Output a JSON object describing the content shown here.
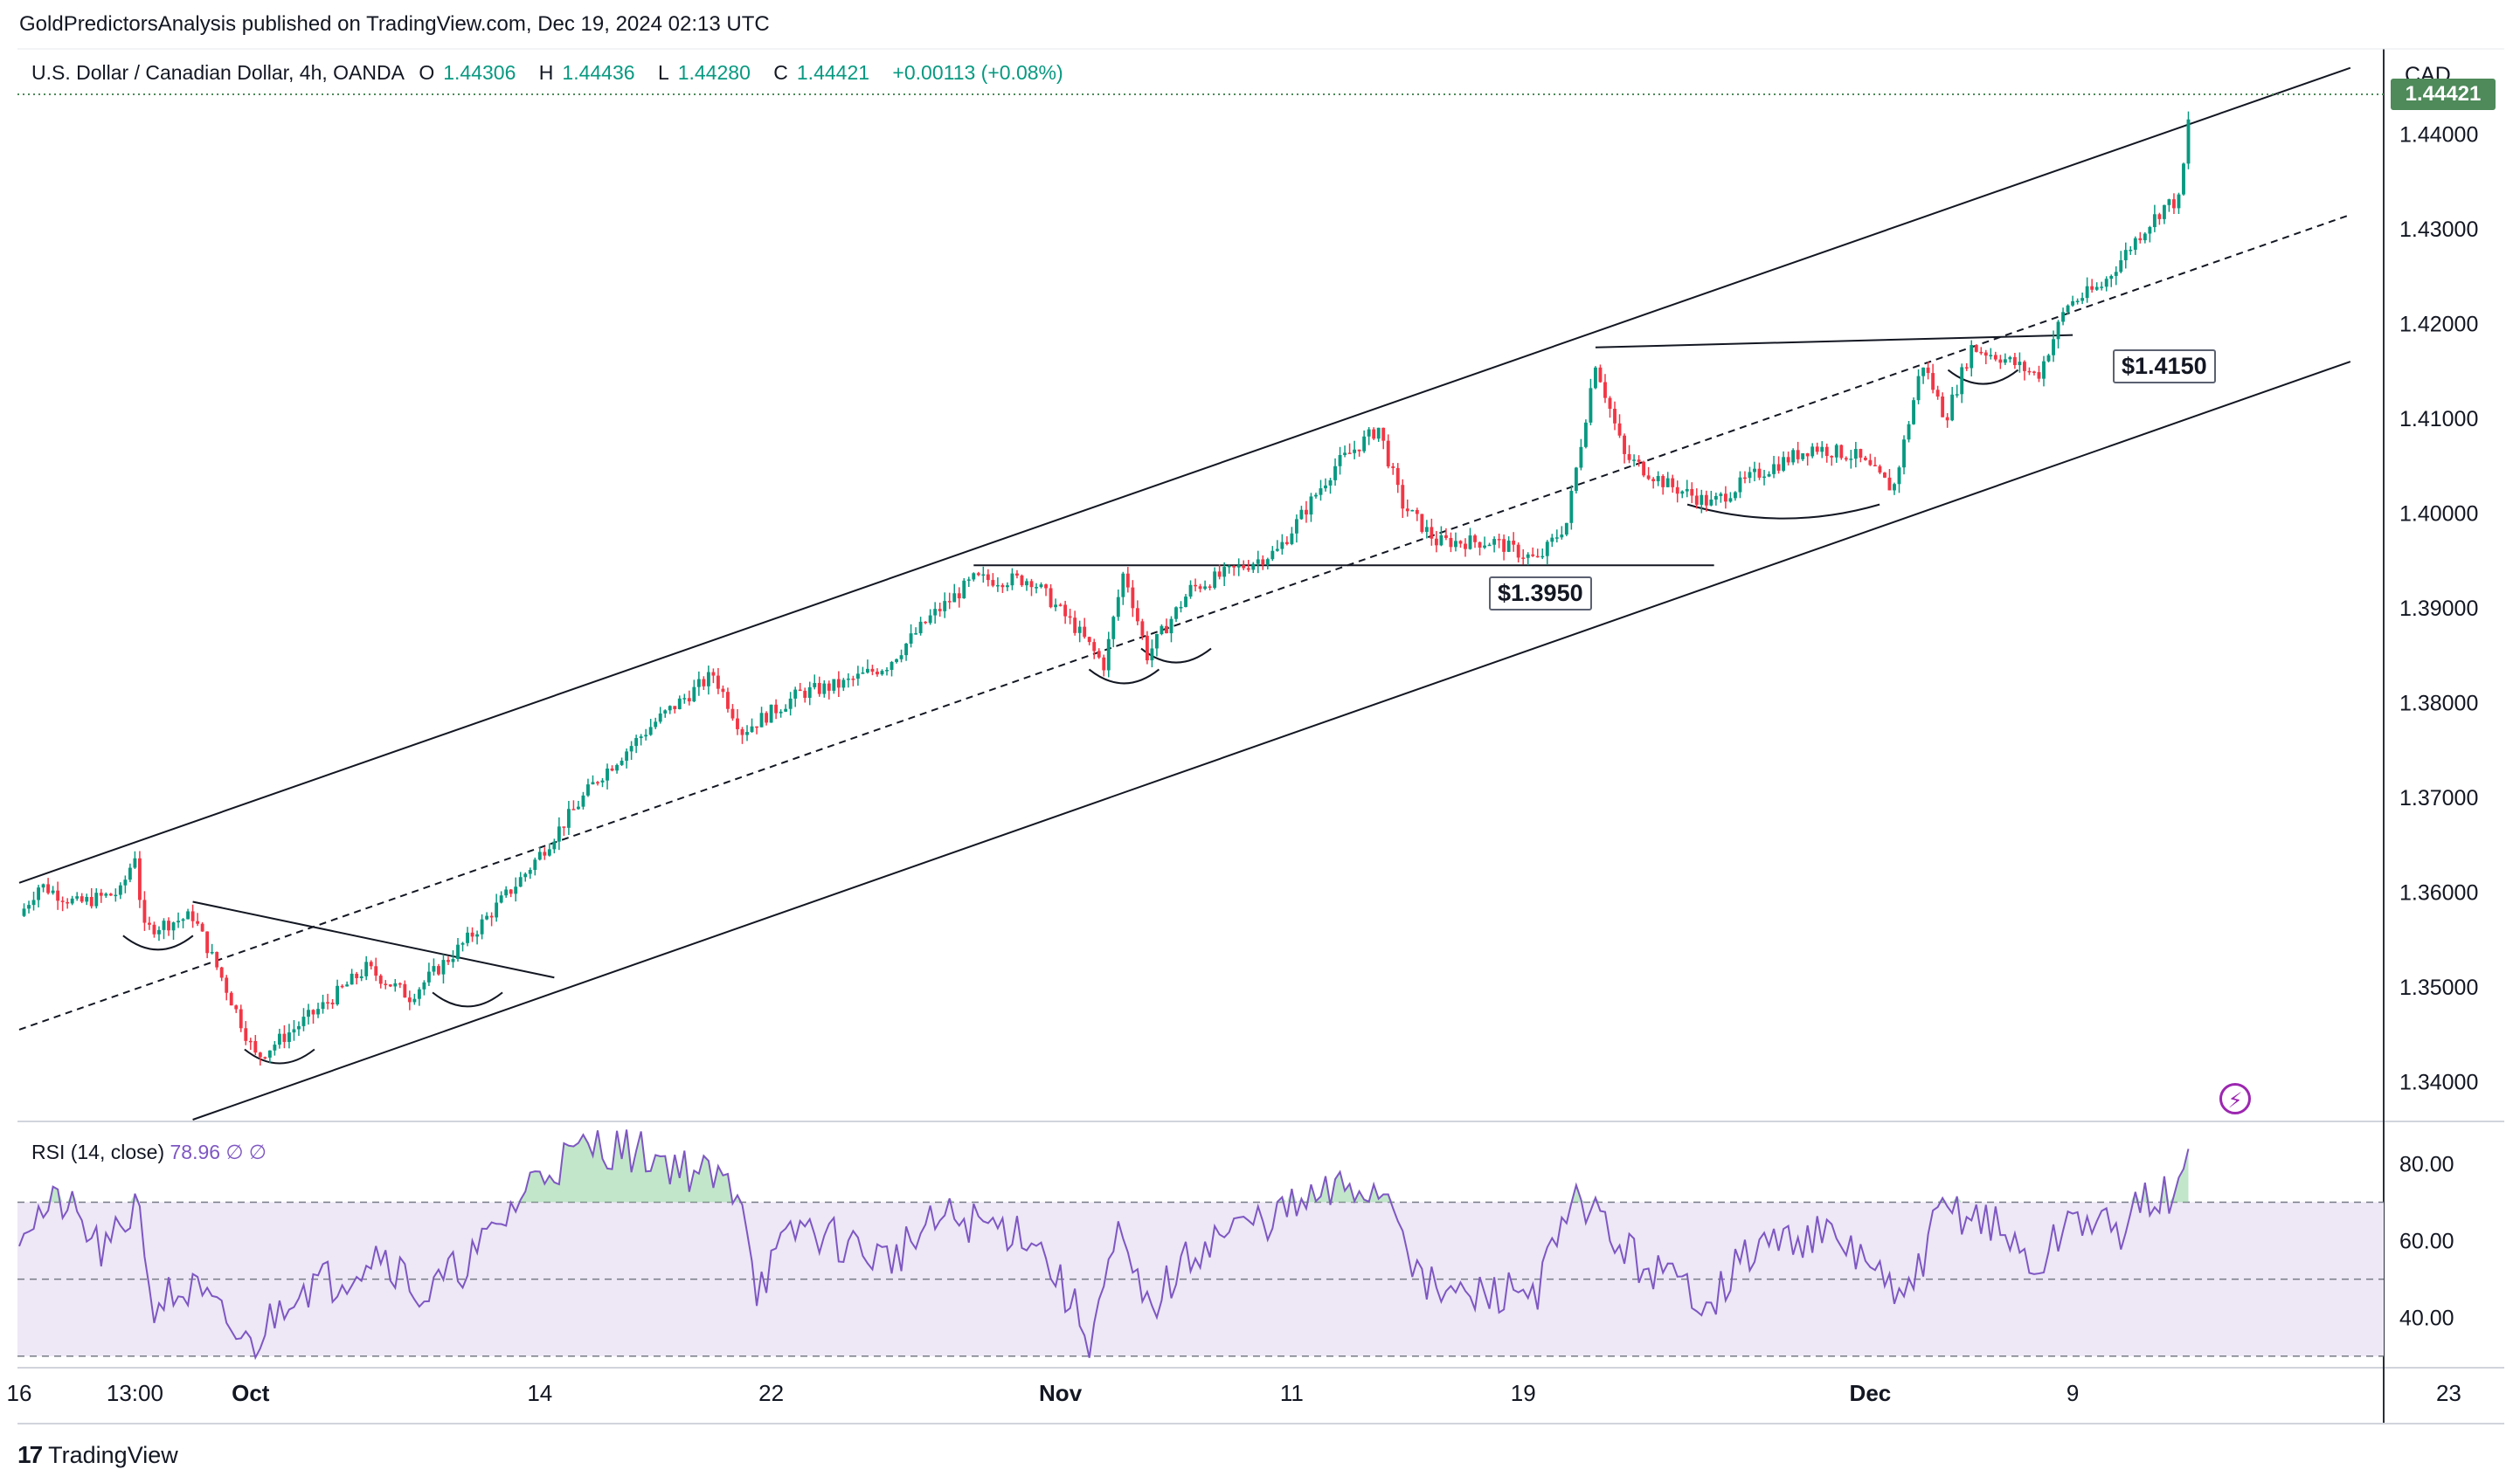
{
  "header": {
    "published": "GoldPredictorsAnalysis published on TradingView.com, Dec 19, 2024 02:13 UTC"
  },
  "symbol": {
    "name": "U.S. Dollar / Canadian Dollar, 4h, OANDA",
    "open_label": "O",
    "open": "1.44306",
    "high_label": "H",
    "high": "1.44436",
    "low_label": "L",
    "low": "1.44280",
    "close_label": "C",
    "close": "1.44421",
    "change": "+0.00113 (+0.08%)"
  },
  "price_axis": {
    "currency": "CAD",
    "last_price": "1.44421",
    "ticks": [
      "1.44000",
      "1.43000",
      "1.42000",
      "1.41000",
      "1.40000",
      "1.39000",
      "1.38000",
      "1.37000",
      "1.36000",
      "1.35000",
      "1.34000"
    ]
  },
  "annotations": {
    "support": "$1.3950",
    "breakout": "$1.4150"
  },
  "rsi": {
    "label": "RSI (14, close)",
    "value": "78.96",
    "extra1": "∅",
    "extra2": "∅",
    "ticks": [
      "80.00",
      "60.00",
      "40.00"
    ]
  },
  "footer": {
    "brand": "TradingView",
    "brand_mark": "17"
  },
  "colors": {
    "up": "#089981",
    "down": "#f23645",
    "rsi": "#7e57c2",
    "rsi_band": "#ede7f6",
    "last_price": "#4e8a5a",
    "grid": "#e0e3eb"
  },
  "chart_data": {
    "type": "candlestick",
    "title": "U.S. Dollar / Canadian Dollar, 4h, OANDA",
    "ylim": [
      1.336,
      1.449
    ],
    "x_ticks": [
      "16",
      "13:00",
      "Oct",
      "14",
      "22",
      "Nov",
      "11",
      "19",
      "Dec",
      "9",
      "23"
    ],
    "x_tick_days": [
      0,
      4,
      8,
      18,
      26,
      36,
      44,
      52,
      64,
      71,
      84
    ],
    "path_anchors": [
      [
        0,
        1.3575
      ],
      [
        0.7,
        1.3608
      ],
      [
        2.0,
        1.3588
      ],
      [
        3.5,
        1.36
      ],
      [
        4.0,
        1.364
      ],
      [
        4.3,
        1.356
      ],
      [
        6.0,
        1.3575
      ],
      [
        7.0,
        1.351
      ],
      [
        8.2,
        1.3425
      ],
      [
        10.5,
        1.348
      ],
      [
        12.0,
        1.352
      ],
      [
        13.5,
        1.349
      ],
      [
        15.5,
        1.355
      ],
      [
        17.5,
        1.362
      ],
      [
        20.0,
        1.372
      ],
      [
        22.0,
        1.378
      ],
      [
        24.0,
        1.383
      ],
      [
        25.0,
        1.377
      ],
      [
        27.0,
        1.381
      ],
      [
        28.5,
        1.382
      ],
      [
        30.0,
        1.384
      ],
      [
        31.5,
        1.389
      ],
      [
        33.0,
        1.393
      ],
      [
        35.0,
        1.393
      ],
      [
        36.5,
        1.388
      ],
      [
        37.5,
        1.384
      ],
      [
        38.2,
        1.394
      ],
      [
        39.0,
        1.385
      ],
      [
        40.5,
        1.392
      ],
      [
        42.0,
        1.394
      ],
      [
        43.5,
        1.396
      ],
      [
        45.5,
        1.405
      ],
      [
        47.0,
        1.409
      ],
      [
        47.8,
        1.401
      ],
      [
        49.0,
        1.397
      ],
      [
        51.0,
        1.397
      ],
      [
        52.5,
        1.395
      ],
      [
        53.5,
        1.399
      ],
      [
        54.5,
        1.416
      ],
      [
        55.5,
        1.406
      ],
      [
        57.0,
        1.403
      ],
      [
        58.5,
        1.401
      ],
      [
        60.0,
        1.404
      ],
      [
        62.0,
        1.407
      ],
      [
        63.5,
        1.406
      ],
      [
        64.8,
        1.4025
      ],
      [
        65.8,
        1.416
      ],
      [
        66.6,
        1.41
      ],
      [
        67.5,
        1.4175
      ],
      [
        68.5,
        1.4165
      ],
      [
        69.8,
        1.4145
      ],
      [
        70.8,
        1.422
      ],
      [
        72.0,
        1.424
      ],
      [
        73.2,
        1.429
      ],
      [
        74.2,
        1.4325
      ],
      [
        74.7,
        1.433
      ],
      [
        75.1,
        1.444
      ]
    ],
    "candles_per_day": 6,
    "channel": {
      "upper": [
        [
          0,
          1.361
        ],
        [
          80.6,
          1.447
        ]
      ],
      "middle": [
        [
          0,
          1.3455
        ],
        [
          80.6,
          1.4315
        ]
      ],
      "lower": [
        [
          6.0,
          1.336
        ],
        [
          80.6,
          1.416
        ]
      ]
    },
    "levels": [
      {
        "label": "$1.3950",
        "value": 1.3945,
        "from": 33.0,
        "to": 58.6
      },
      {
        "label": "$1.4150",
        "from": [
          54.5,
          1.4175
        ],
        "to": [
          71.0,
          1.4188
        ]
      }
    ],
    "triangle_line": [
      [
        6.0,
        1.359
      ],
      [
        18.5,
        1.351
      ]
    ],
    "rsi_series_anchors": [
      [
        0,
        64
      ],
      [
        1.5,
        70
      ],
      [
        3,
        56
      ],
      [
        4.2,
        72
      ],
      [
        4.5,
        44
      ],
      [
        6,
        47
      ],
      [
        8,
        32
      ],
      [
        9.5,
        48
      ],
      [
        11,
        50
      ],
      [
        12.5,
        58
      ],
      [
        14,
        45
      ],
      [
        16,
        58
      ],
      [
        18,
        78
      ],
      [
        20,
        85
      ],
      [
        22,
        82
      ],
      [
        25,
        73
      ],
      [
        25.5,
        48
      ],
      [
        27,
        64
      ],
      [
        30,
        55
      ],
      [
        32,
        66
      ],
      [
        35,
        62
      ],
      [
        37,
        35
      ],
      [
        38,
        60
      ],
      [
        39,
        42
      ],
      [
        41,
        60
      ],
      [
        44,
        68
      ],
      [
        46,
        74
      ],
      [
        47.5,
        72
      ],
      [
        48.5,
        48
      ],
      [
        50,
        45
      ],
      [
        52.5,
        48
      ],
      [
        54,
        72
      ],
      [
        55.5,
        57
      ],
      [
        57,
        50
      ],
      [
        58.5,
        45
      ],
      [
        60,
        58
      ],
      [
        62,
        62
      ],
      [
        64,
        55
      ],
      [
        65,
        42
      ],
      [
        66.5,
        68
      ],
      [
        68,
        66
      ],
      [
        69.8,
        52
      ],
      [
        71,
        67
      ],
      [
        72.5,
        62
      ],
      [
        73.8,
        72
      ],
      [
        74.6,
        70
      ],
      [
        75.1,
        83
      ]
    ],
    "rsi_ylim": [
      27,
      91
    ],
    "rsi_levels": [
      70,
      50,
      30
    ]
  }
}
